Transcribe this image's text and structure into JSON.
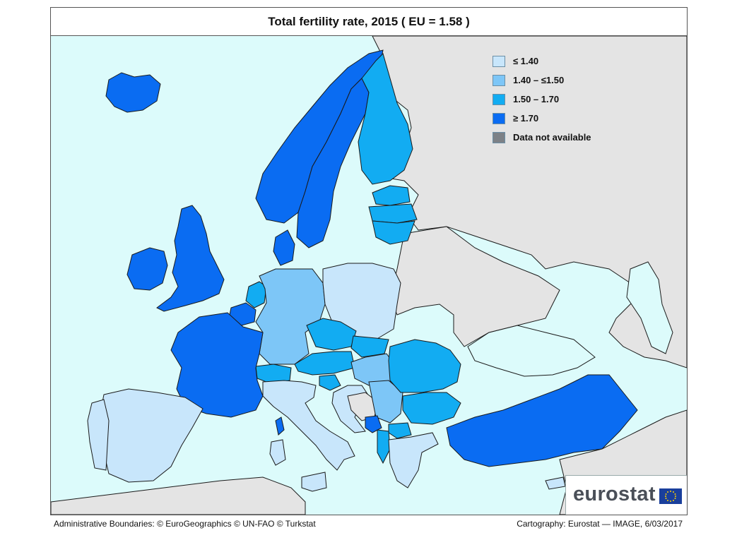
{
  "title": "Total fertility rate, 2015 ( EU = 1.58 )",
  "legend": [
    {
      "label": "≤ 1.40",
      "color": "#c8e6fb"
    },
    {
      "label": "1.40 – ≤1.50",
      "color": "#7dc6f7"
    },
    {
      "label": "1.50 – 1.70",
      "color": "#12acf2"
    },
    {
      "label": "≥ 1.70",
      "color": "#0a6cf2"
    },
    {
      "label": "Data not available",
      "color": "#7c8187"
    }
  ],
  "colors": {
    "sea": "#dcfbfb",
    "non_data": "#e4e4e4",
    "border": "#1a1a1a"
  },
  "logo": {
    "text": "eurostat"
  },
  "footer": {
    "left": "Administrative Boundaries: © EuroGeographics © UN-FAO © Turkstat",
    "right": "Cartography: Eurostat — IMAGE, 6/03/2017"
  }
}
